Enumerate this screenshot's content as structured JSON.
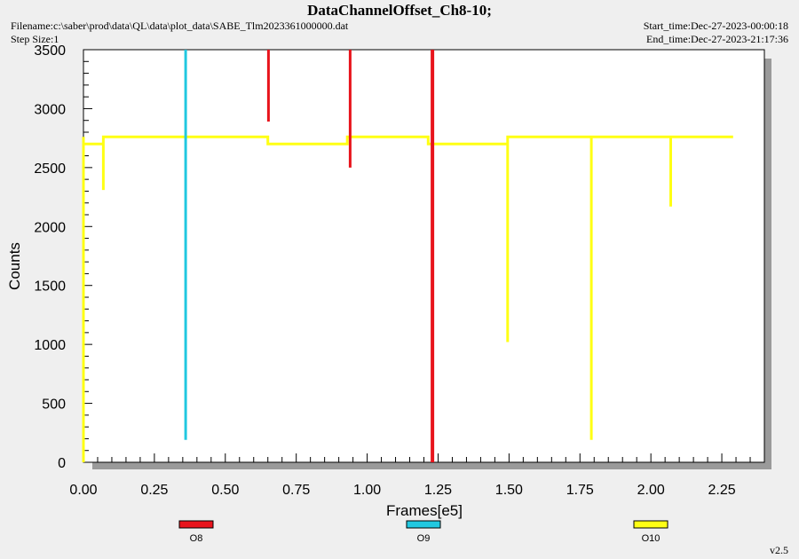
{
  "header": {
    "title": "DataChannelOffset_Ch8-10;",
    "filename": "Filename:c:\\saber\\prod\\data\\QL\\data\\plot_data\\SABE_Tlm2023361000000.dat",
    "step_size": "Step Size:1",
    "start_time": "Start_time:Dec-27-2023-00:00:18",
    "end_time": "End_time:Dec-27-2023-21:17:36"
  },
  "version": "v2.5",
  "chart_data": {
    "type": "line",
    "title": "DataChannelOffset_Ch8-10;",
    "xlabel": "Frames[e5]",
    "ylabel": "Counts",
    "xlim": [
      0,
      2.4
    ],
    "ylim": [
      0,
      3500
    ],
    "x_ticks": [
      "0.00",
      "0.25",
      "0.50",
      "0.75",
      "1.00",
      "1.25",
      "1.50",
      "1.75",
      "2.00",
      "2.25"
    ],
    "y_ticks": [
      "0",
      "500",
      "1000",
      "1500",
      "2000",
      "2500",
      "3000",
      "3500"
    ],
    "legend_placement": "bottom",
    "series": [
      {
        "name": "O8",
        "color": "#e8141c",
        "segments": [
          [
            [
              0.652,
              2890
            ],
            [
              0.652,
              3500
            ]
          ],
          [
            [
              0.94,
              2500
            ],
            [
              0.94,
              3500
            ]
          ],
          [
            [
              1.23,
              0
            ],
            [
              1.23,
              3500
            ]
          ]
        ]
      },
      {
        "name": "O9",
        "color": "#21c8e0",
        "segments": [
          [
            [
              0.36,
              190
            ],
            [
              0.36,
              3500
            ]
          ]
        ]
      },
      {
        "name": "O10",
        "color": "#ffff14",
        "segments": [
          [
            [
              0.0,
              2700
            ],
            [
              0.07,
              2700
            ],
            [
              0.07,
              2310
            ],
            [
              0.07,
              2760
            ],
            [
              0.65,
              2760
            ],
            [
              0.65,
              2700
            ],
            [
              0.93,
              2700
            ],
            [
              0.93,
              2760
            ],
            [
              1.215,
              2760
            ],
            [
              1.215,
              2700
            ],
            [
              1.495,
              2700
            ],
            [
              1.495,
              1020
            ],
            [
              1.495,
              2760
            ],
            [
              1.79,
              2760
            ],
            [
              1.79,
              190
            ],
            [
              1.79,
              2760
            ],
            [
              2.07,
              2760
            ],
            [
              2.07,
              2170
            ],
            [
              2.07,
              2760
            ],
            [
              2.29,
              2760
            ]
          ],
          [
            [
              0.0,
              0
            ],
            [
              0.0,
              2760
            ]
          ]
        ]
      }
    ]
  }
}
